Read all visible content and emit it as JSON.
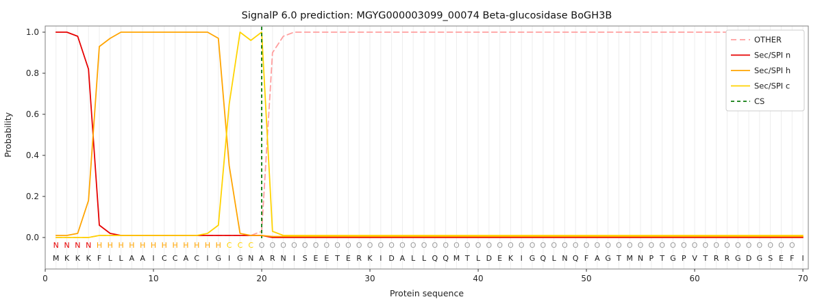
{
  "title": "SignalP 6.0 prediction: MGYG000003099_00074 Beta-glucosidase BoGH3B",
  "xlabel": "Protein sequence",
  "ylabel": "Probability",
  "chart_data": {
    "type": "line",
    "title": "SignalP 6.0 prediction: MGYG000003099_00074 Beta-glucosidase BoGH3B",
    "xlabel": "Protein sequence",
    "ylabel": "Probability",
    "xlim": [
      0,
      70.5
    ],
    "ylim": [
      0.0,
      1.0
    ],
    "x_ticks": [
      0,
      10,
      20,
      30,
      40,
      50,
      60,
      70
    ],
    "y_ticks": [
      0.0,
      0.2,
      0.4,
      0.6,
      0.8,
      1.0
    ],
    "grid": "vertical-per-residue",
    "legend_position": "upper right",
    "sequence": "MKKKFLLAAICCACIGIGNARNISEETERKIDALLQQMTLDEKIGQLNQFAGTMNPTGPVTRRGDGSEFI",
    "region_labels": "NNNNHHHHHHHHHHHHCCCOOOOOOOOOOOOOOOOOOOOOOOOOOOOOOOOOOOOOOOOOOOOOOOOOO",
    "region_colors": {
      "N": "#e60000",
      "H": "#ffa400",
      "C": "#ffd300",
      "O": "#9e9e9e"
    },
    "series": [
      {
        "name": "OTHER",
        "color": "#ff9e9e",
        "dash": "8 5",
        "values": [
          0.0,
          0.0,
          0.0,
          0.0,
          0.01,
          0.01,
          0.01,
          0.01,
          0.01,
          0.01,
          0.01,
          0.01,
          0.01,
          0.01,
          0.01,
          0.01,
          0.01,
          0.01,
          0.01,
          0.03,
          0.9,
          0.98,
          1.0,
          1.0,
          1.0,
          1.0,
          1.0,
          1.0,
          1.0,
          1.0,
          1.0,
          1.0,
          1.0,
          1.0,
          1.0,
          1.0,
          1.0,
          1.0,
          1.0,
          1.0,
          1.0,
          1.0,
          1.0,
          1.0,
          1.0,
          1.0,
          1.0,
          1.0,
          1.0,
          1.0,
          1.0,
          1.0,
          1.0,
          1.0,
          1.0,
          1.0,
          1.0,
          1.0,
          1.0,
          1.0,
          1.0,
          1.0,
          1.0,
          1.0,
          1.0,
          1.0,
          1.0,
          1.0,
          1.0,
          1.0
        ]
      },
      {
        "name": "Sec/SPI n",
        "color": "#e60000",
        "dash": "",
        "values": [
          1.0,
          1.0,
          0.98,
          0.82,
          0.06,
          0.02,
          0.01,
          0.01,
          0.01,
          0.01,
          0.01,
          0.01,
          0.01,
          0.01,
          0.01,
          0.01,
          0.01,
          0.01,
          0.01,
          0.01,
          0.0,
          0.0,
          0.0,
          0.0,
          0.0,
          0.0,
          0.0,
          0.0,
          0.0,
          0.0,
          0.0,
          0.0,
          0.0,
          0.0,
          0.0,
          0.0,
          0.0,
          0.0,
          0.0,
          0.0,
          0.0,
          0.0,
          0.0,
          0.0,
          0.0,
          0.0,
          0.0,
          0.0,
          0.0,
          0.0,
          0.0,
          0.0,
          0.0,
          0.0,
          0.0,
          0.0,
          0.0,
          0.0,
          0.0,
          0.0,
          0.0,
          0.0,
          0.0,
          0.0,
          0.0,
          0.0,
          0.0,
          0.0,
          0.0,
          0.0
        ]
      },
      {
        "name": "Sec/SPI h",
        "color": "#ffa400",
        "dash": "",
        "values": [
          0.01,
          0.01,
          0.02,
          0.18,
          0.93,
          0.97,
          1.0,
          1.0,
          1.0,
          1.0,
          1.0,
          1.0,
          1.0,
          1.0,
          1.0,
          0.97,
          0.35,
          0.02,
          0.01,
          0.01,
          0.005,
          0.005,
          0.005,
          0.005,
          0.005,
          0.005,
          0.005,
          0.005,
          0.005,
          0.005,
          0.005,
          0.005,
          0.005,
          0.005,
          0.005,
          0.005,
          0.005,
          0.005,
          0.005,
          0.005,
          0.005,
          0.005,
          0.005,
          0.005,
          0.005,
          0.005,
          0.005,
          0.005,
          0.005,
          0.005,
          0.005,
          0.005,
          0.005,
          0.005,
          0.005,
          0.005,
          0.005,
          0.005,
          0.005,
          0.005,
          0.005,
          0.005,
          0.005,
          0.005,
          0.005,
          0.005,
          0.005,
          0.005,
          0.005,
          0.005
        ]
      },
      {
        "name": "Sec/SPI c",
        "color": "#ffd300",
        "dash": "",
        "values": [
          0.0,
          0.0,
          0.0,
          0.0,
          0.01,
          0.01,
          0.01,
          0.01,
          0.01,
          0.01,
          0.01,
          0.01,
          0.01,
          0.01,
          0.02,
          0.06,
          0.65,
          1.0,
          0.96,
          1.0,
          0.03,
          0.01,
          0.01,
          0.01,
          0.01,
          0.01,
          0.01,
          0.01,
          0.01,
          0.01,
          0.01,
          0.01,
          0.01,
          0.01,
          0.01,
          0.01,
          0.01,
          0.01,
          0.01,
          0.01,
          0.01,
          0.01,
          0.01,
          0.01,
          0.01,
          0.01,
          0.01,
          0.01,
          0.01,
          0.01,
          0.01,
          0.01,
          0.01,
          0.01,
          0.01,
          0.01,
          0.01,
          0.01,
          0.01,
          0.01,
          0.01,
          0.01,
          0.01,
          0.01,
          0.01,
          0.01,
          0.01,
          0.01,
          0.01,
          0.01
        ]
      }
    ],
    "cs_marker": {
      "name": "CS",
      "position": 20,
      "color": "#0b7a0b",
      "dash": "5 4"
    }
  },
  "legend": {
    "items": [
      {
        "label": "OTHER",
        "color": "#ff9e9e",
        "dash": "8 5"
      },
      {
        "label": "Sec/SPI n",
        "color": "#e60000",
        "dash": ""
      },
      {
        "label": "Sec/SPI h",
        "color": "#ffa400",
        "dash": ""
      },
      {
        "label": "Sec/SPI c",
        "color": "#ffd300",
        "dash": ""
      },
      {
        "label": "CS",
        "color": "#0b7a0b",
        "dash": "5 4"
      }
    ]
  }
}
